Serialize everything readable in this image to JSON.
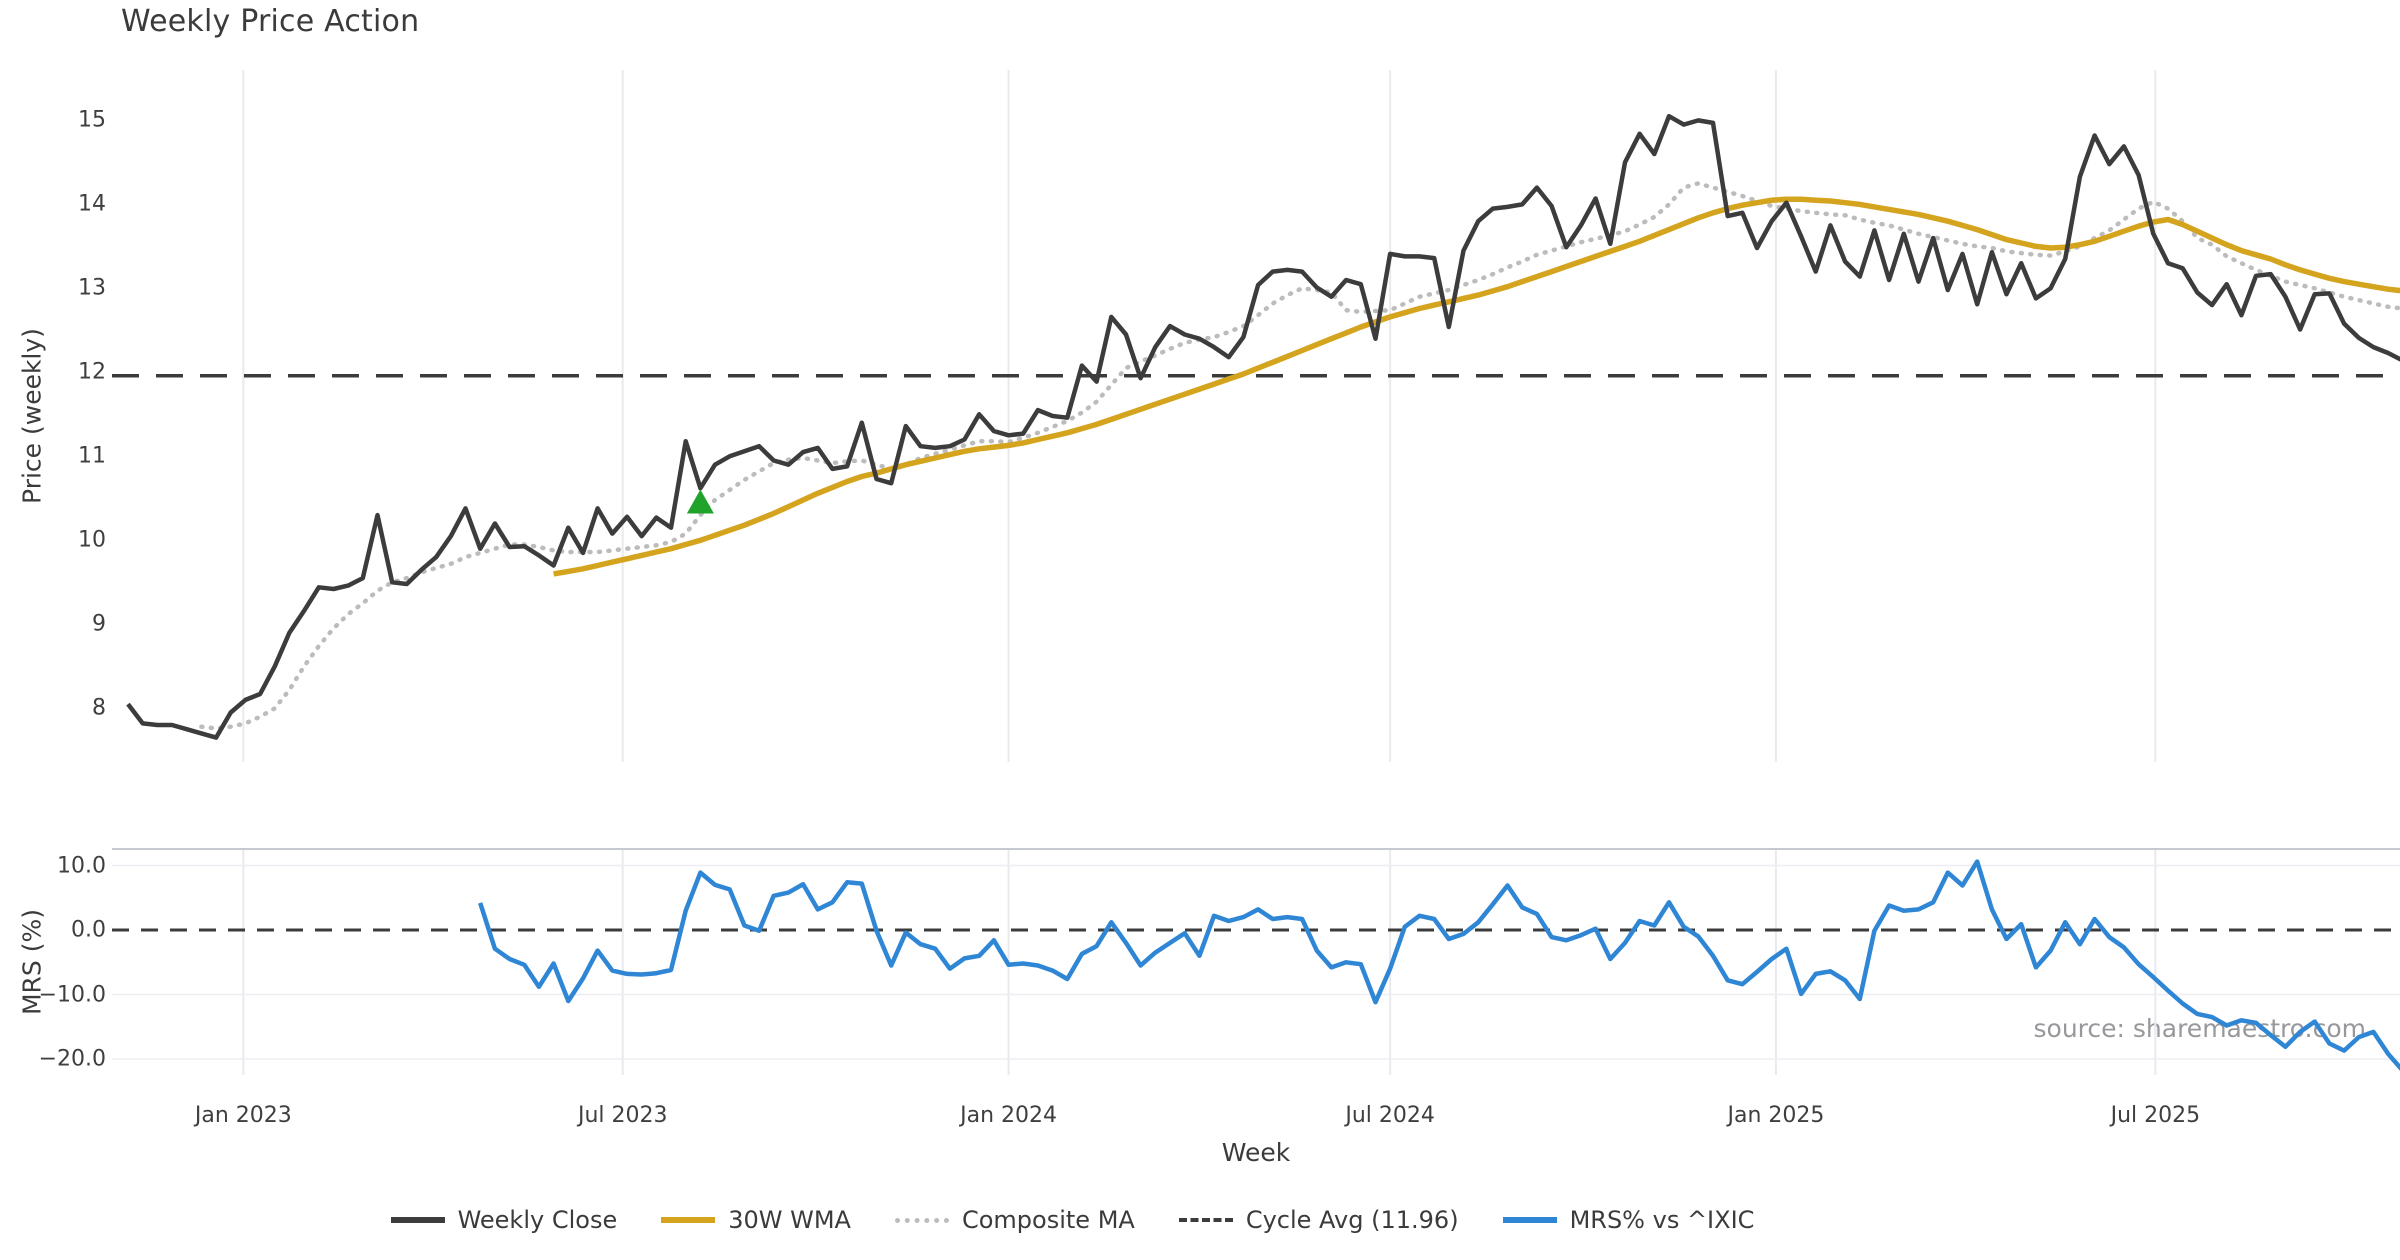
{
  "title": "Weekly Price Action",
  "watermark": "source: sharemaestro.com",
  "x_axis": {
    "label": "Week",
    "unit": "week-index",
    "xlim": [
      -1.09,
      154.81
    ],
    "ticks": [
      {
        "label": "Jan 2023",
        "week": 7.86
      },
      {
        "label": "Jul 2023",
        "week": 33.71
      },
      {
        "label": "Jan 2024",
        "week": 60.0
      },
      {
        "label": "Jul 2024",
        "week": 86.0
      },
      {
        "label": "Jan 2025",
        "week": 112.29
      },
      {
        "label": "Jul 2025",
        "week": 138.14
      }
    ]
  },
  "price_panel": {
    "ylabel": "Price (weekly)",
    "ylim": [
      7.36,
      15.6
    ],
    "yticks": [
      {
        "label": "8",
        "value": 8
      },
      {
        "label": "9",
        "value": 9
      },
      {
        "label": "10",
        "value": 10
      },
      {
        "label": "11",
        "value": 11
      },
      {
        "label": "12",
        "value": 12
      },
      {
        "label": "13",
        "value": 13
      },
      {
        "label": "14",
        "value": 14
      },
      {
        "label": "15",
        "value": 15
      }
    ],
    "grid_horizontal": false
  },
  "mrs_panel": {
    "ylabel": "MRS (%)",
    "ylim": [
      -22.48,
      12.56
    ],
    "yticks": [
      {
        "label": "10.0",
        "value": 10
      },
      {
        "label": "0.0",
        "value": 0
      },
      {
        "label": "−10.0",
        "value": -10
      },
      {
        "label": "−20.0",
        "value": -20
      }
    ],
    "grid_horizontal_values": [
      10,
      -10,
      -20
    ],
    "grid_horizontal": true
  },
  "legend": {
    "items": [
      {
        "label": "Weekly Close",
        "style": "solid",
        "color": "#3c3c3c"
      },
      {
        "label": "30W WMA",
        "style": "solid",
        "color": "#d5a41e"
      },
      {
        "label": "Composite MA",
        "style": "dotted",
        "color": "#bcbcbc"
      },
      {
        "label": "Cycle Avg (11.96)",
        "style": "dashed",
        "color": "#3c3c3c"
      },
      {
        "label": "MRS% vs ^IXIC",
        "style": "solid",
        "color": "#2e86d5"
      }
    ]
  },
  "colors": {
    "close": "#3c3c3c",
    "wma": "#d5a41e",
    "composite": "#bcbcbc",
    "cycle_dash": "#3b3b3b",
    "mrs": "#2e86d5",
    "marker": "#1fa32b",
    "grid_v": "#e9e9f0",
    "grid_h": "#ededf2",
    "spine": "#c6c9d2"
  },
  "chart_data": {
    "type": "line",
    "title": "Weekly Price Action",
    "xlabel": "Week",
    "frequency": "weekly",
    "num_weeks": 156,
    "hlines": {
      "price_cycle_avg": 11.96,
      "mrs_zero": 0.0
    },
    "marker": {
      "name": "buy-signal-triangle",
      "week": 39,
      "value": 10.45
    },
    "series": [
      {
        "name": "Weekly Close",
        "panel": "price",
        "start_index": 0,
        "values": [
          8.05,
          7.82,
          7.8,
          7.8,
          7.75,
          7.7,
          7.65,
          7.95,
          8.1,
          8.17,
          8.5,
          8.9,
          9.16,
          9.44,
          9.42,
          9.46,
          9.55,
          10.3,
          9.5,
          9.48,
          9.65,
          9.8,
          10.05,
          10.38,
          9.9,
          10.2,
          9.92,
          9.93,
          9.82,
          9.7,
          10.15,
          9.85,
          10.38,
          10.08,
          10.28,
          10.05,
          10.27,
          10.15,
          11.18,
          10.62,
          10.9,
          11.0,
          11.06,
          11.12,
          10.95,
          10.9,
          11.05,
          11.1,
          10.85,
          10.88,
          11.4,
          10.73,
          10.68,
          11.36,
          11.12,
          11.1,
          11.12,
          11.2,
          11.5,
          11.3,
          11.25,
          11.27,
          11.55,
          11.48,
          11.46,
          12.08,
          11.89,
          12.66,
          12.45,
          11.93,
          12.3,
          12.55,
          12.45,
          12.4,
          12.3,
          12.18,
          12.42,
          13.04,
          13.2,
          13.22,
          13.2,
          13.01,
          12.9,
          13.1,
          13.05,
          12.4,
          13.41,
          13.38,
          13.38,
          13.36,
          12.54,
          13.45,
          13.8,
          13.95,
          13.97,
          14.0,
          14.2,
          13.98,
          13.49,
          13.75,
          14.07,
          13.53,
          14.5,
          14.84,
          14.6,
          15.05,
          14.95,
          15.0,
          14.97,
          13.86,
          13.9,
          13.48,
          13.8,
          14.02,
          13.62,
          13.2,
          13.75,
          13.32,
          13.14,
          13.69,
          13.1,
          13.65,
          13.08,
          13.6,
          12.98,
          13.41,
          12.81,
          13.43,
          12.93,
          13.3,
          12.88,
          13.0,
          13.35,
          14.33,
          14.82,
          14.48,
          14.69,
          14.35,
          13.65,
          13.3,
          13.24,
          12.95,
          12.8,
          13.05,
          12.68,
          13.15,
          13.17,
          12.9,
          12.51,
          12.93,
          12.94,
          12.58,
          12.41,
          12.3,
          12.23,
          12.14
        ]
      },
      {
        "name": "30W WMA",
        "panel": "price",
        "start_index": 29,
        "values": [
          9.6,
          9.63,
          9.66,
          9.7,
          9.74,
          9.78,
          9.82,
          9.86,
          9.9,
          9.95,
          10.0,
          10.06,
          10.12,
          10.18,
          10.25,
          10.32,
          10.4,
          10.48,
          10.56,
          10.63,
          10.7,
          10.76,
          10.8,
          10.85,
          10.9,
          10.94,
          10.98,
          11.02,
          11.06,
          11.09,
          11.11,
          11.13,
          11.16,
          11.2,
          11.24,
          11.28,
          11.33,
          11.38,
          11.44,
          11.5,
          11.56,
          11.62,
          11.68,
          11.74,
          11.8,
          11.86,
          11.92,
          11.98,
          12.05,
          12.12,
          12.19,
          12.26,
          12.33,
          12.4,
          12.47,
          12.54,
          12.6,
          12.66,
          12.71,
          12.76,
          12.8,
          12.84,
          12.88,
          12.92,
          12.97,
          13.02,
          13.08,
          13.14,
          13.2,
          13.26,
          13.32,
          13.38,
          13.44,
          13.5,
          13.56,
          13.63,
          13.7,
          13.77,
          13.84,
          13.9,
          13.95,
          13.99,
          14.02,
          14.05,
          14.06,
          14.06,
          14.05,
          14.04,
          14.02,
          14.0,
          13.97,
          13.94,
          13.91,
          13.88,
          13.84,
          13.8,
          13.75,
          13.7,
          13.64,
          13.58,
          13.54,
          13.5,
          13.48,
          13.49,
          13.52,
          13.56,
          13.62,
          13.68,
          13.74,
          13.79,
          13.82,
          13.76,
          13.68,
          13.6,
          13.52,
          13.45,
          13.4,
          13.35,
          13.28,
          13.22,
          13.17,
          13.12,
          13.08,
          13.05,
          13.02,
          12.99,
          12.97
        ]
      },
      {
        "name": "Composite MA",
        "panel": "price",
        "start_index": 5,
        "values": [
          7.78,
          7.76,
          7.78,
          7.82,
          7.9,
          8.0,
          8.22,
          8.5,
          8.74,
          8.95,
          9.12,
          9.25,
          9.4,
          9.5,
          9.55,
          9.62,
          9.67,
          9.72,
          9.8,
          9.85,
          9.9,
          9.95,
          9.95,
          9.92,
          9.88,
          9.86,
          9.86,
          9.86,
          9.88,
          9.9,
          9.92,
          9.94,
          9.98,
          10.08,
          10.3,
          10.48,
          10.6,
          10.72,
          10.82,
          10.92,
          10.96,
          10.98,
          10.95,
          10.92,
          10.94,
          10.95,
          10.9,
          10.85,
          10.9,
          10.98,
          11.03,
          11.08,
          11.13,
          11.18,
          11.18,
          11.17,
          11.22,
          11.28,
          11.35,
          11.42,
          11.52,
          11.65,
          11.85,
          12.05,
          12.13,
          12.2,
          12.28,
          12.35,
          12.39,
          12.42,
          12.48,
          12.55,
          12.68,
          12.82,
          12.92,
          13.0,
          12.98,
          12.95,
          12.74,
          12.72,
          12.73,
          12.74,
          12.82,
          12.9,
          12.94,
          12.98,
          13.04,
          13.1,
          13.17,
          13.25,
          13.32,
          13.4,
          13.45,
          13.5,
          13.55,
          13.59,
          13.63,
          13.68,
          13.76,
          13.85,
          14.0,
          14.2,
          14.25,
          14.2,
          14.15,
          14.1,
          14.04,
          13.98,
          13.95,
          13.92,
          13.9,
          13.88,
          13.87,
          13.82,
          13.78,
          13.75,
          13.7,
          13.65,
          13.61,
          13.57,
          13.53,
          13.5,
          13.48,
          13.44,
          13.42,
          13.4,
          13.39,
          13.44,
          13.5,
          13.6,
          13.69,
          13.82,
          13.95,
          14.03,
          13.95,
          13.8,
          13.6,
          13.52,
          13.38,
          13.3,
          13.22,
          13.15,
          13.08,
          13.04,
          13.0,
          12.95,
          12.9,
          12.86,
          12.82,
          12.78,
          12.76
        ]
      },
      {
        "name": "MRS% vs ^IXIC",
        "panel": "mrs",
        "start_index": 24,
        "values": [
          4.2,
          -2.9,
          -4.5,
          -5.4,
          -8.8,
          -5.2,
          -11.0,
          -7.5,
          -3.2,
          -6.3,
          -6.8,
          -6.9,
          -6.7,
          -6.2,
          3.0,
          8.9,
          7.0,
          6.3,
          0.7,
          -0.1,
          5.3,
          5.8,
          7.1,
          3.2,
          4.3,
          7.4,
          7.2,
          -0.1,
          -5.5,
          -0.4,
          -2.2,
          -2.9,
          -6.0,
          -4.4,
          -4.0,
          -1.6,
          -5.4,
          -5.2,
          -5.5,
          -6.3,
          -7.6,
          -3.7,
          -2.5,
          1.2,
          -2.0,
          -5.5,
          -3.5,
          -2.0,
          -0.5,
          -4.0,
          2.2,
          1.4,
          2.0,
          3.2,
          1.7,
          2.0,
          1.7,
          -3.2,
          -5.8,
          -5.0,
          -5.3,
          -11.2,
          -6.0,
          0.5,
          2.2,
          1.7,
          -1.4,
          -0.6,
          1.2,
          4.0,
          6.9,
          3.5,
          2.5,
          -1.1,
          -1.6,
          -0.8,
          0.2,
          -4.5,
          -2.0,
          1.4,
          0.7,
          4.3,
          0.5,
          -1.0,
          -4.0,
          -7.8,
          -8.4,
          -6.5,
          -4.5,
          -2.9,
          -9.9,
          -6.8,
          -6.4,
          -7.8,
          -10.7,
          -0.1,
          3.8,
          3.0,
          3.2,
          4.3,
          8.9,
          6.9,
          10.6,
          3.2,
          -1.4,
          0.9,
          -5.8,
          -3.2,
          1.2,
          -2.2,
          1.7,
          -1.1,
          -2.7,
          -5.3,
          -7.3,
          -9.4,
          -11.4,
          -13.0,
          -13.5,
          -14.8,
          -14.0,
          -14.4,
          -16.3,
          -18.1,
          -15.8,
          -14.2,
          -17.6,
          -18.7,
          -16.6,
          -15.8,
          -19.2,
          -21.8
        ]
      }
    ]
  }
}
